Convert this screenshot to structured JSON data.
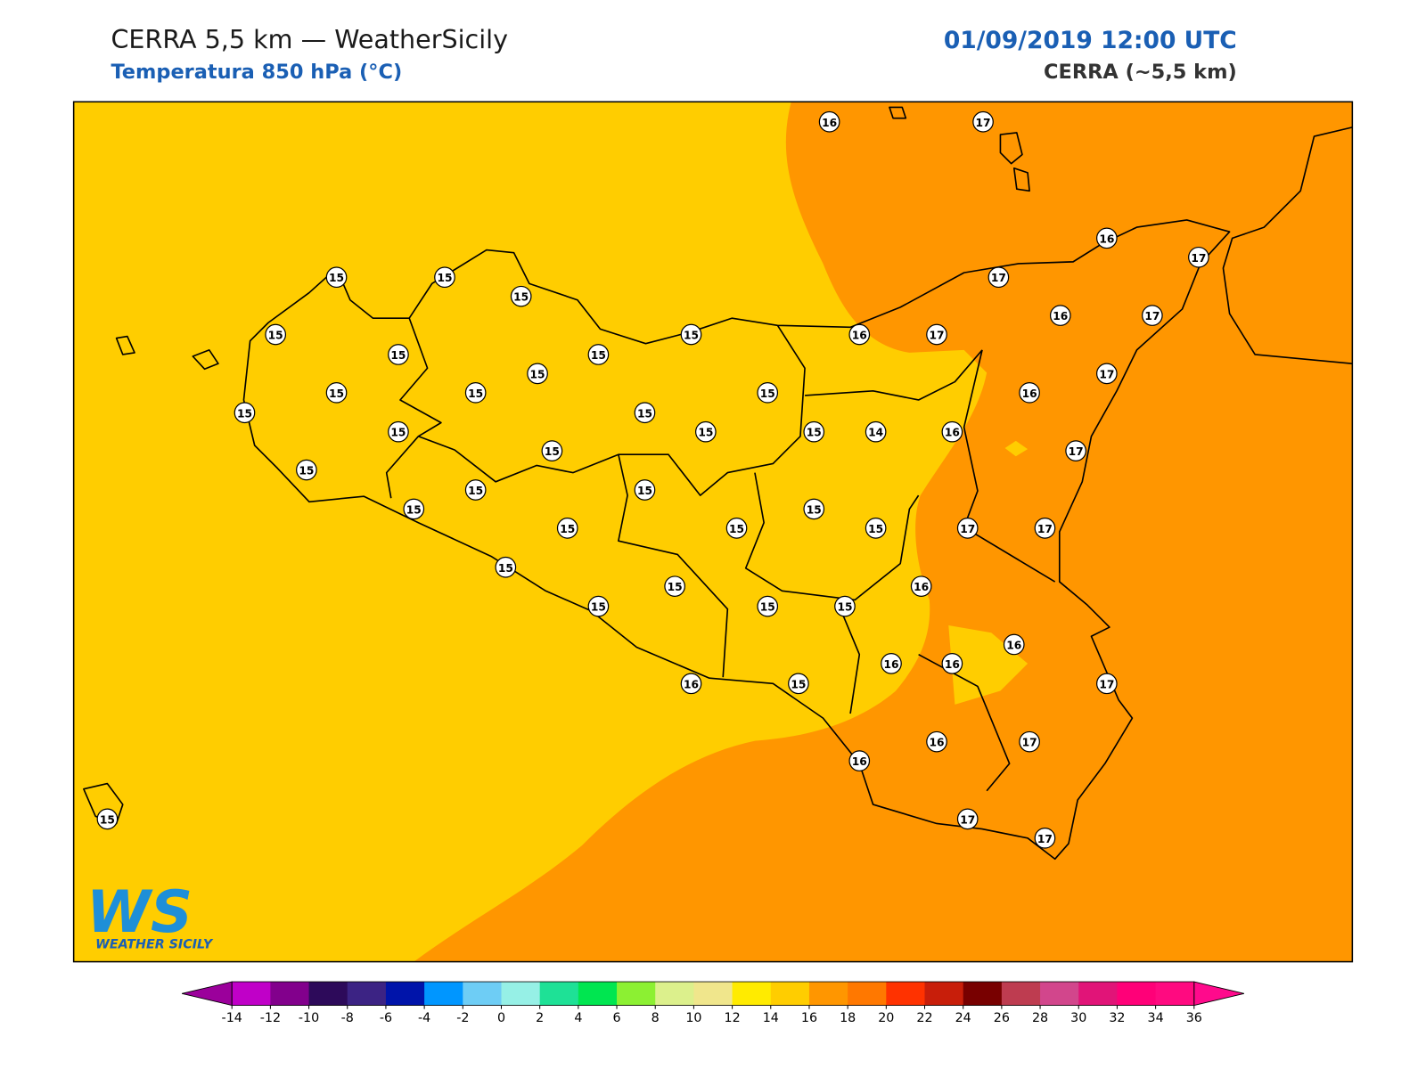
{
  "header": {
    "title": "CERRA 5,5 km — WeatherSicily",
    "subtitle": "Temperatura 850 hPa (°C)",
    "datetime": "01/09/2019 12:00 UTC",
    "model": "CERRA (~5,5 km)"
  },
  "stations": [
    16,
    17,
    16,
    17,
    15,
    15,
    17,
    15,
    16,
    17,
    15,
    15,
    16,
    17,
    15,
    15,
    15,
    17,
    15,
    15,
    15,
    16,
    15,
    15,
    15,
    15,
    15,
    14,
    16,
    15,
    17,
    15,
    15,
    15,
    15,
    15,
    15,
    15,
    15,
    17,
    17,
    15,
    15,
    16,
    15,
    15,
    15,
    16,
    16,
    16,
    16,
    15,
    17,
    16,
    16,
    17,
    15,
    17,
    17
  ],
  "logo": {
    "mark": "WS",
    "caption": "WEATHER SICILY"
  },
  "colorbar": {
    "ticks": [
      -14,
      -12,
      -10,
      -8,
      -6,
      -4,
      -2,
      0,
      2,
      4,
      6,
      8,
      10,
      12,
      14,
      16,
      18,
      20,
      22,
      24,
      26,
      28,
      30,
      32,
      34,
      36
    ],
    "colors": [
      "#c000c8",
      "#82008c",
      "#2d0a5a",
      "#3c2384",
      "#0014aa",
      "#0096ff",
      "#6ecdf5",
      "#96f0e6",
      "#1ee196",
      "#00e650",
      "#8cf032",
      "#dcf08c",
      "#f0e68c",
      "#ffeb00",
      "#ffcd00",
      "#ff9600",
      "#ff7800",
      "#ff3200",
      "#c81e0a",
      "#780000",
      "#be3c50",
      "#d2468c",
      "#e11478",
      "#ff0078",
      "#ff0a80"
    ],
    "under_color": "#9b009b",
    "over_color": "#ff0a8c"
  }
}
